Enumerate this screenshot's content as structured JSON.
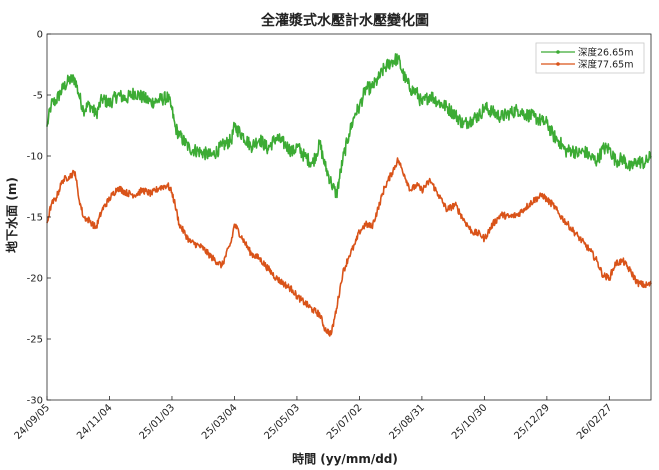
{
  "chart_data": {
    "type": "line",
    "title": "全灌漿式水壓計水壓變化圖",
    "xlabel": "時間 (yy/mm/dd)",
    "ylabel": "地下水面 (m)",
    "ylim": [
      -30,
      0
    ],
    "yticks": [
      0,
      -5,
      -10,
      -15,
      -20,
      -25,
      -30
    ],
    "xlim": [
      "2024-09-05",
      "2026-04-08"
    ],
    "xticks": [
      "24/09/05",
      "24/11/04",
      "25/01/03",
      "25/03/04",
      "25/05/03",
      "25/07/02",
      "25/08/31",
      "25/10/30",
      "25/12/29",
      "26/02/27"
    ],
    "grid": false,
    "legend_position": "top-right",
    "series": [
      {
        "name": "深度26.65m",
        "color": "#3cab34",
        "x": [
          "2024-09-05",
          "2024-09-09",
          "2024-09-14",
          "2024-09-20",
          "2024-09-26",
          "2024-10-02",
          "2024-10-05",
          "2024-10-10",
          "2024-10-16",
          "2024-10-22",
          "2024-10-28",
          "2024-11-04",
          "2024-11-12",
          "2024-11-20",
          "2024-11-28",
          "2024-12-06",
          "2024-12-14",
          "2024-12-22",
          "2024-12-30",
          "2025-01-03",
          "2025-01-06",
          "2025-01-10",
          "2025-01-20",
          "2025-02-01",
          "2025-02-10",
          "2025-02-20",
          "2025-03-01",
          "2025-03-04",
          "2025-03-12",
          "2025-03-20",
          "2025-03-28",
          "2025-04-05",
          "2025-04-13",
          "2025-04-21",
          "2025-04-29",
          "2025-05-03",
          "2025-05-10",
          "2025-05-18",
          "2025-05-25",
          "2025-05-30",
          "2025-06-05",
          "2025-06-10",
          "2025-06-16",
          "2025-06-22",
          "2025-06-28",
          "2025-07-02",
          "2025-07-08",
          "2025-07-14",
          "2025-07-20",
          "2025-07-26",
          "2025-08-01",
          "2025-08-08",
          "2025-08-14",
          "2025-08-20",
          "2025-08-26",
          "2025-08-31",
          "2025-09-08",
          "2025-09-16",
          "2025-09-24",
          "2025-10-02",
          "2025-10-10",
          "2025-10-18",
          "2025-10-26",
          "2025-10-30",
          "2025-11-07",
          "2025-11-15",
          "2025-11-23",
          "2025-12-01",
          "2025-12-09",
          "2025-12-17",
          "2025-12-25",
          "2025-12-29",
          "2026-01-04",
          "2026-01-10",
          "2026-01-16",
          "2026-01-22",
          "2026-01-28",
          "2026-02-03",
          "2026-02-09",
          "2026-02-15",
          "2026-02-21",
          "2026-02-27",
          "2026-03-05",
          "2026-03-12",
          "2026-03-19",
          "2026-03-26",
          "2026-04-02",
          "2026-04-08"
        ],
        "values": [
          -7.6,
          -5.8,
          -5.4,
          -4.5,
          -3.8,
          -3.7,
          -4.8,
          -6.2,
          -5.8,
          -6.6,
          -5.3,
          -5.7,
          -5.0,
          -5.3,
          -4.8,
          -5.2,
          -5.6,
          -5.4,
          -5.2,
          -6.2,
          -7.6,
          -8.3,
          -9.4,
          -9.7,
          -10.0,
          -9.2,
          -8.7,
          -7.6,
          -8.3,
          -9.2,
          -8.6,
          -9.4,
          -8.5,
          -9.0,
          -9.7,
          -9.2,
          -10.0,
          -10.6,
          -9.0,
          -10.8,
          -12.2,
          -13.2,
          -10.3,
          -8.2,
          -6.5,
          -6.0,
          -4.5,
          -4.4,
          -3.7,
          -2.8,
          -2.3,
          -2.0,
          -3.5,
          -4.5,
          -4.8,
          -5.7,
          -5.0,
          -5.6,
          -6.0,
          -6.6,
          -7.4,
          -7.0,
          -6.6,
          -6.0,
          -6.4,
          -6.8,
          -6.5,
          -6.2,
          -6.6,
          -6.8,
          -7.2,
          -7.3,
          -8.3,
          -8.8,
          -9.6,
          -9.5,
          -9.8,
          -9.6,
          -10.1,
          -10.4,
          -9.4,
          -9.4,
          -10.4,
          -10.2,
          -11.0,
          -10.4,
          -10.6,
          -10.0
        ]
      },
      {
        "name": "深度77.65m",
        "color": "#d95319",
        "x": [
          "2024-09-05",
          "2024-09-09",
          "2024-09-14",
          "2024-09-20",
          "2024-09-26",
          "2024-10-02",
          "2024-10-05",
          "2024-10-10",
          "2024-10-16",
          "2024-10-22",
          "2024-10-28",
          "2024-11-04",
          "2024-11-12",
          "2024-11-20",
          "2024-11-28",
          "2024-12-06",
          "2024-12-14",
          "2024-12-22",
          "2024-12-30",
          "2025-01-03",
          "2025-01-06",
          "2025-01-10",
          "2025-01-20",
          "2025-02-01",
          "2025-02-10",
          "2025-02-20",
          "2025-03-01",
          "2025-03-04",
          "2025-03-12",
          "2025-03-20",
          "2025-03-28",
          "2025-04-05",
          "2025-04-13",
          "2025-04-21",
          "2025-04-29",
          "2025-05-03",
          "2025-05-10",
          "2025-05-18",
          "2025-05-25",
          "2025-05-30",
          "2025-06-05",
          "2025-06-10",
          "2025-06-16",
          "2025-06-22",
          "2025-06-28",
          "2025-07-02",
          "2025-07-08",
          "2025-07-14",
          "2025-07-20",
          "2025-07-26",
          "2025-08-01",
          "2025-08-08",
          "2025-08-14",
          "2025-08-20",
          "2025-08-26",
          "2025-08-31",
          "2025-09-08",
          "2025-09-16",
          "2025-09-24",
          "2025-10-02",
          "2025-10-10",
          "2025-10-18",
          "2025-10-26",
          "2025-10-30",
          "2025-11-07",
          "2025-11-15",
          "2025-11-23",
          "2025-12-01",
          "2025-12-09",
          "2025-12-17",
          "2025-12-25",
          "2025-12-29",
          "2026-01-04",
          "2026-01-10",
          "2026-01-16",
          "2026-01-22",
          "2026-01-28",
          "2026-02-03",
          "2026-02-09",
          "2026-02-15",
          "2026-02-21",
          "2026-02-27",
          "2026-03-05",
          "2026-03-12",
          "2026-03-19",
          "2026-03-26",
          "2026-04-02",
          "2026-04-08"
        ],
        "values": [
          -15.5,
          -14.0,
          -13.4,
          -12.0,
          -11.7,
          -11.3,
          -13.2,
          -15.0,
          -15.3,
          -15.9,
          -14.4,
          -13.5,
          -12.6,
          -13.0,
          -13.2,
          -12.8,
          -13.1,
          -12.6,
          -12.4,
          -13.0,
          -14.0,
          -15.6,
          -17.0,
          -17.5,
          -18.3,
          -19.0,
          -17.0,
          -15.6,
          -16.8,
          -18.0,
          -18.4,
          -19.2,
          -20.0,
          -20.5,
          -21.0,
          -21.5,
          -22.0,
          -22.6,
          -23.0,
          -24.2,
          -24.6,
          -22.5,
          -19.6,
          -18.2,
          -17.2,
          -16.2,
          -15.6,
          -15.8,
          -14.3,
          -12.6,
          -11.6,
          -10.3,
          -11.5,
          -12.8,
          -12.4,
          -12.8,
          -12.0,
          -13.2,
          -14.4,
          -14.0,
          -15.2,
          -16.2,
          -16.4,
          -16.8,
          -15.6,
          -14.8,
          -15.0,
          -14.8,
          -14.2,
          -13.6,
          -13.2,
          -13.6,
          -14.0,
          -14.8,
          -15.4,
          -16.0,
          -16.6,
          -17.2,
          -17.8,
          -18.6,
          -19.8,
          -20.0,
          -18.8,
          -18.6,
          -19.4,
          -20.4,
          -20.6,
          -20.5
        ]
      }
    ]
  }
}
